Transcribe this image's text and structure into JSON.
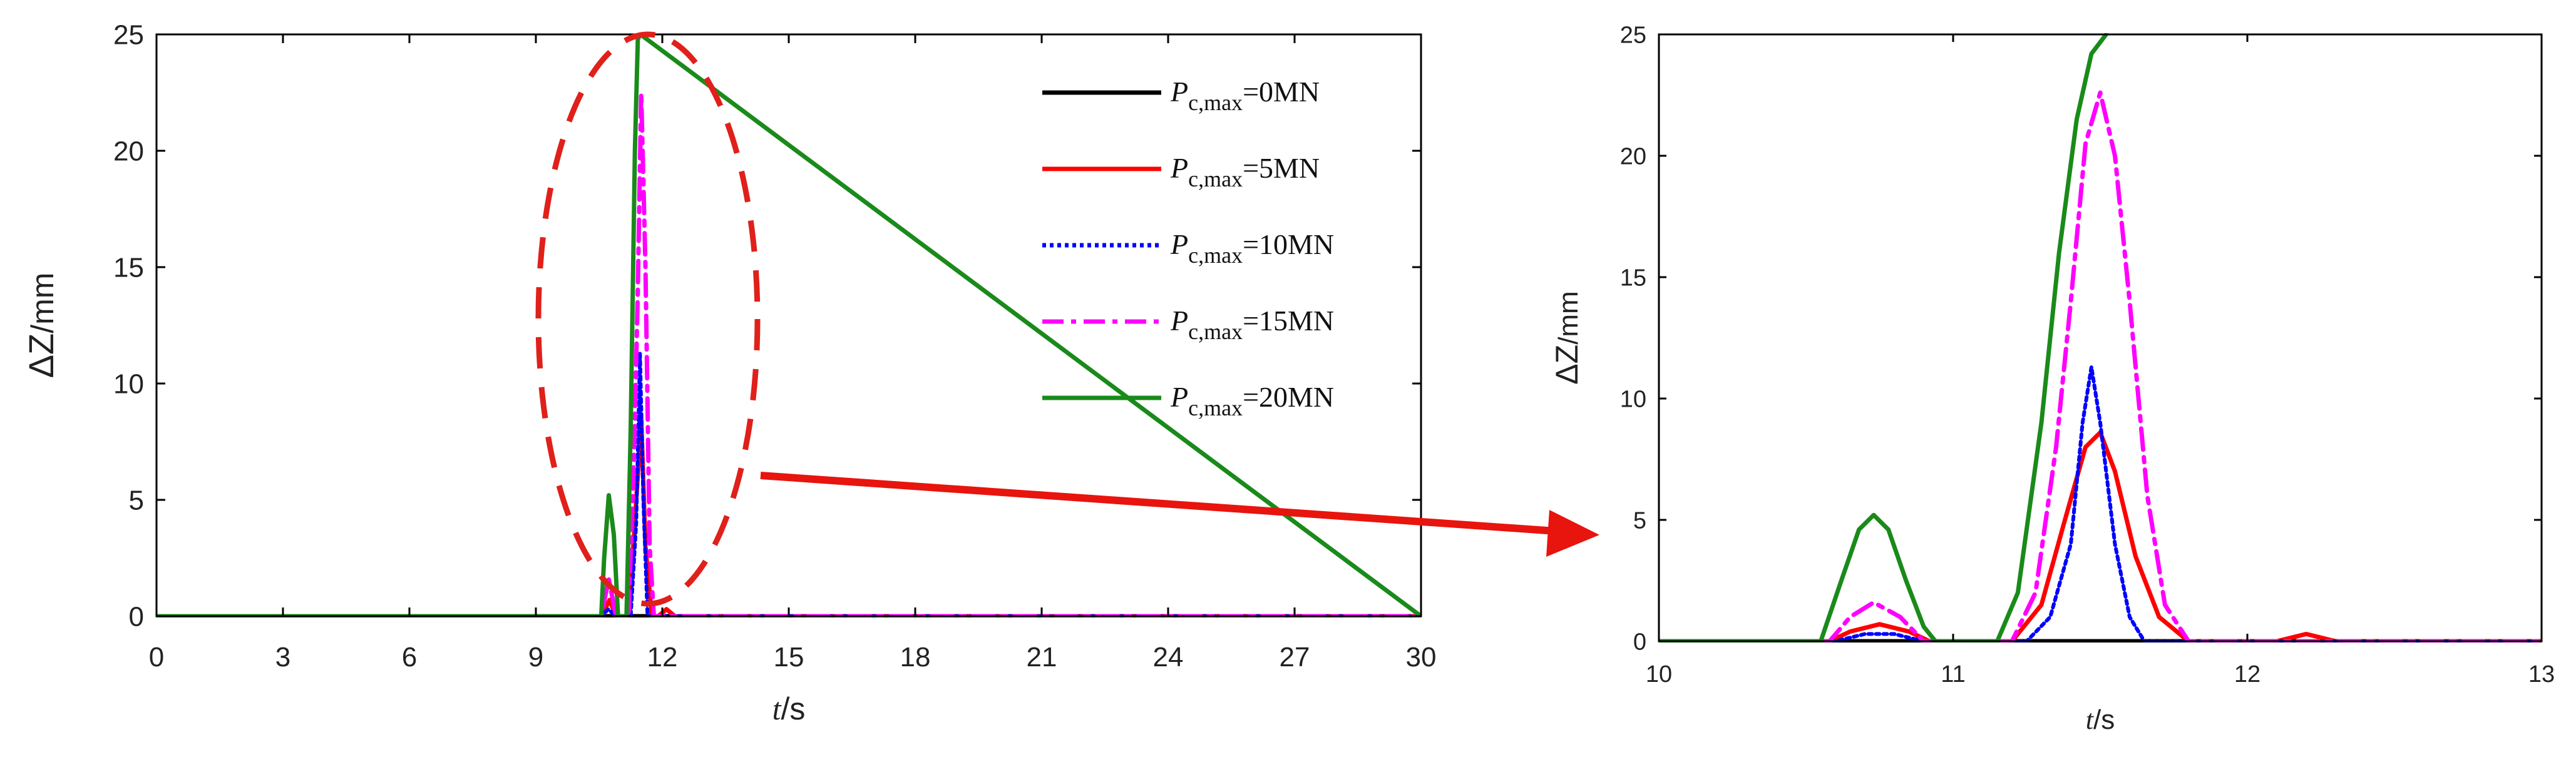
{
  "chart_data": [
    {
      "type": "line",
      "id": "left",
      "xlim": [
        0,
        30
      ],
      "ylim": [
        0,
        25
      ],
      "xticks": [
        0,
        3,
        6,
        9,
        12,
        15,
        18,
        21,
        24,
        27,
        30
      ],
      "yticks": [
        0,
        5,
        10,
        15,
        20,
        25
      ],
      "xlabel": {
        "main": "t",
        "unit": "/s"
      },
      "ylabel": {
        "prefix": "ΔZ",
        "unit": "/mm"
      },
      "legend_position": "top-right",
      "grid": false,
      "series": [
        {
          "name": "P",
          "sub": "c,max",
          "value": "=0MN",
          "color": "#000000",
          "dash": "solid",
          "x": [
            0,
            30
          ],
          "y": [
            0,
            0
          ]
        },
        {
          "name": "P",
          "sub": "c,max",
          "value": "=5MN",
          "color": "#ff0000",
          "dash": "solid",
          "x": [
            0,
            10.55,
            10.75,
            10.9,
            11.2,
            11.35,
            11.5,
            11.6,
            11.75,
            11.9,
            12.1,
            12.3,
            30
          ],
          "y": [
            0,
            0,
            0.7,
            0,
            0,
            4,
            8.5,
            3,
            0,
            0,
            0.3,
            0,
            0
          ]
        },
        {
          "name": "P",
          "sub": "c,max",
          "value": "=10MN",
          "color": "#0000ff",
          "dash": "dot",
          "x": [
            0,
            10.55,
            10.72,
            10.9,
            11.25,
            11.38,
            11.47,
            11.55,
            11.65,
            30
          ],
          "y": [
            0,
            0,
            0.3,
            0,
            0,
            4,
            11.3,
            5,
            0,
            0
          ]
        },
        {
          "name": "P",
          "sub": "c,max",
          "value": "=15MN",
          "color": "#ff00ff",
          "dash": "dashdot",
          "x": [
            0,
            10.55,
            10.73,
            10.9,
            11.2,
            11.33,
            11.42,
            11.5,
            11.6,
            11.7,
            11.8,
            30
          ],
          "y": [
            0,
            0,
            1.6,
            0,
            0,
            7,
            14,
            22.5,
            15,
            3,
            0,
            0
          ]
        },
        {
          "name": "P",
          "sub": "c,max",
          "value": "=20MN",
          "color": "#1a8a1a",
          "dash": "solid",
          "x": [
            0,
            10.55,
            10.62,
            10.73,
            10.85,
            10.95,
            11.15,
            11.25,
            11.35,
            11.42,
            11.48,
            30
          ],
          "y": [
            0,
            0,
            2.5,
            5.2,
            3.5,
            0,
            0,
            8,
            20,
            24.8,
            25,
            0
          ]
        }
      ]
    },
    {
      "type": "line",
      "id": "right",
      "xlim": [
        10,
        13
      ],
      "ylim": [
        0,
        25
      ],
      "xticks": [
        10,
        11,
        12,
        13
      ],
      "yticks": [
        0,
        5,
        10,
        15,
        20,
        25
      ],
      "xlabel": {
        "main": "t",
        "unit": "/s"
      },
      "ylabel": {
        "prefix": "ΔZ",
        "unit": "/mm"
      },
      "grid": false,
      "series": [
        {
          "color": "#000000",
          "dash": "solid",
          "x": [
            10,
            13
          ],
          "y": [
            0,
            0
          ]
        },
        {
          "color": "#ff0000",
          "dash": "solid",
          "x": [
            10,
            10.58,
            10.65,
            10.75,
            10.85,
            10.92,
            11.2,
            11.3,
            11.38,
            11.45,
            11.5,
            11.55,
            11.62,
            11.7,
            11.8,
            12.1,
            12.2,
            12.3,
            13
          ],
          "y": [
            0,
            0,
            0.4,
            0.7,
            0.4,
            0,
            0,
            1.5,
            5,
            8,
            8.6,
            7,
            3.5,
            1,
            0,
            0,
            0.3,
            0,
            0
          ]
        },
        {
          "color": "#0000ff",
          "dash": "dot",
          "x": [
            10,
            10.6,
            10.7,
            10.8,
            10.9,
            11.25,
            11.33,
            11.4,
            11.44,
            11.47,
            11.5,
            11.55,
            11.6,
            11.65,
            13
          ],
          "y": [
            0,
            0,
            0.3,
            0.3,
            0,
            0,
            1,
            4,
            9,
            11.3,
            9,
            4,
            1,
            0,
            0
          ]
        },
        {
          "color": "#ff00ff",
          "dash": "dashdot",
          "x": [
            10,
            10.58,
            10.65,
            10.73,
            10.82,
            10.9,
            11.2,
            11.28,
            11.35,
            11.4,
            11.45,
            11.5,
            11.55,
            11.6,
            11.66,
            11.72,
            11.8,
            12.5,
            13
          ],
          "y": [
            0,
            0,
            1,
            1.6,
            1,
            0,
            0,
            2,
            8,
            14,
            20.5,
            22.6,
            20,
            14,
            6,
            1.5,
            0,
            0,
            0
          ]
        },
        {
          "color": "#1a8a1a",
          "dash": "solid",
          "x": [
            10,
            10.55,
            10.62,
            10.68,
            10.73,
            10.78,
            10.84,
            10.9,
            10.94,
            11.15,
            11.22,
            11.3,
            11.36,
            11.42,
            11.47,
            11.52
          ],
          "y": [
            0,
            0,
            2.5,
            4.6,
            5.2,
            4.6,
            2.5,
            0.6,
            0,
            0,
            2,
            9,
            16,
            21.5,
            24.2,
            25
          ]
        }
      ]
    }
  ]
}
